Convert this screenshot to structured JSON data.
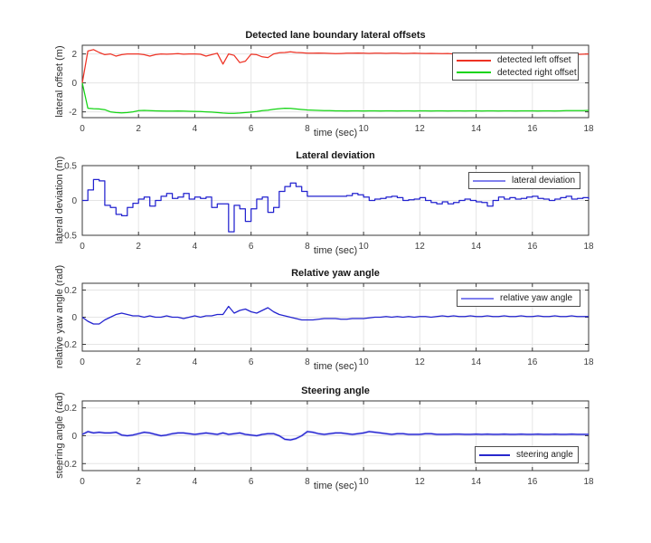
{
  "figure": {
    "background": "#ffffff",
    "grid_color": "#e5e5e5",
    "axis_color": "#3a3a3a",
    "tick_label_color": "#414141"
  },
  "chart_data": [
    {
      "type": "line",
      "title": "Detected lane boundary lateral offsets",
      "xlabel": "time (sec)",
      "ylabel": "lateral offset (m)",
      "xlim": [
        0,
        18
      ],
      "ylim": [
        -2.4,
        2.6
      ],
      "xticks": [
        0,
        2,
        4,
        6,
        8,
        10,
        12,
        14,
        16,
        18
      ],
      "yticks": [
        -2,
        0,
        2
      ],
      "grid": true,
      "legend_position": "upper-right",
      "x": [
        0,
        0.2,
        0.4,
        0.6,
        0.8,
        1,
        1.2,
        1.4,
        1.6,
        1.8,
        2,
        2.2,
        2.4,
        2.6,
        2.8,
        3,
        3.2,
        3.4,
        3.6,
        3.8,
        4,
        4.2,
        4.4,
        4.6,
        4.8,
        5,
        5.2,
        5.4,
        5.6,
        5.8,
        6,
        6.2,
        6.4,
        6.6,
        6.8,
        7,
        7.2,
        7.4,
        7.6,
        7.8,
        8,
        8.2,
        8.4,
        8.6,
        8.8,
        9,
        9.2,
        9.4,
        9.6,
        9.8,
        10,
        10.2,
        10.4,
        10.6,
        10.8,
        11,
        11.2,
        11.4,
        11.6,
        11.8,
        12,
        12.2,
        12.4,
        12.6,
        12.8,
        13,
        13.2,
        13.4,
        13.6,
        13.8,
        14,
        14.2,
        14.4,
        14.6,
        14.8,
        15,
        15.2,
        15.4,
        15.6,
        15.8,
        16,
        16.2,
        16.4,
        16.6,
        16.8,
        17,
        17.2,
        17.4,
        17.6,
        17.8,
        18
      ],
      "series": [
        {
          "name": "detected left offset",
          "color": "#ee3224",
          "legend_swatch": "#ee3224",
          "values": [
            0,
            2.2,
            2.3,
            2.1,
            1.95,
            2,
            1.85,
            1.95,
            2,
            2,
            2,
            1.95,
            1.85,
            1.95,
            2,
            1.98,
            2,
            2.02,
            1.98,
            2,
            2,
            1.98,
            1.85,
            1.95,
            2.05,
            1.3,
            2,
            1.9,
            1.4,
            1.5,
            1.98,
            1.95,
            1.8,
            1.75,
            2,
            2.08,
            2.1,
            2.15,
            2.1,
            2.08,
            2.05,
            2.05,
            2.06,
            2.05,
            2.04,
            2.02,
            2.03,
            2.05,
            2.05,
            2.06,
            2.05,
            2.04,
            2.05,
            2.05,
            2.04,
            2.05,
            2.05,
            2.03,
            2.04,
            2.05,
            2.04,
            2.03,
            2.04,
            2.03,
            2.02,
            2.03,
            2,
            1.98,
            2,
            1.99,
            1.98,
            2,
            1.97,
            1.98,
            1.97,
            1.96,
            2.05,
            1.97,
            1.96,
            1.98,
            1.97,
            1.96,
            1.97,
            1.98,
            1.96,
            1.97,
            1.98,
            2.05,
            1.97,
            1.98,
            2
          ]
        },
        {
          "name": "detected right offset",
          "color": "#11d411",
          "legend_swatch": "#11d411",
          "values": [
            0,
            -1.75,
            -1.78,
            -1.8,
            -1.85,
            -2,
            -2.05,
            -2.07,
            -2.05,
            -2,
            -1.92,
            -1.9,
            -1.92,
            -1.93,
            -1.94,
            -1.95,
            -1.95,
            -1.94,
            -1.95,
            -1.96,
            -1.97,
            -1.98,
            -2,
            -2.02,
            -2.05,
            -2.08,
            -2.1,
            -2.1,
            -2.08,
            -2.05,
            -2.02,
            -1.98,
            -1.92,
            -1.88,
            -1.82,
            -1.78,
            -1.75,
            -1.76,
            -1.8,
            -1.84,
            -1.87,
            -1.89,
            -1.9,
            -1.91,
            -1.92,
            -1.93,
            -1.93,
            -1.94,
            -1.93,
            -1.93,
            -1.94,
            -1.93,
            -1.93,
            -1.94,
            -1.93,
            -1.93,
            -1.94,
            -1.93,
            -1.93,
            -1.94,
            -1.93,
            -1.93,
            -1.94,
            -1.93,
            -1.93,
            -1.94,
            -1.93,
            -1.93,
            -1.94,
            -1.93,
            -1.93,
            -1.94,
            -1.93,
            -1.93,
            -1.94,
            -1.93,
            -1.93,
            -1.94,
            -1.93,
            -1.93,
            -1.93,
            -1.94,
            -1.93,
            -1.93,
            -1.94,
            -1.93,
            -1.92,
            -1.92,
            -1.91,
            -1.91,
            -1.9
          ]
        }
      ]
    },
    {
      "type": "line",
      "title": "Lateral deviation",
      "xlabel": "time (sec)",
      "ylabel": "lateral deviation (m)",
      "xlim": [
        0,
        18
      ],
      "ylim": [
        -0.5,
        0.5
      ],
      "xticks": [
        0,
        2,
        4,
        6,
        8,
        10,
        12,
        14,
        16,
        18
      ],
      "yticks": [
        -0.5,
        0,
        0.5
      ],
      "grid": true,
      "legend_position": "upper-right",
      "x": [
        0,
        0.2,
        0.4,
        0.6,
        0.8,
        1,
        1.2,
        1.4,
        1.6,
        1.8,
        2,
        2.2,
        2.4,
        2.6,
        2.8,
        3,
        3.2,
        3.4,
        3.6,
        3.8,
        4,
        4.2,
        4.4,
        4.6,
        4.8,
        5,
        5.2,
        5.4,
        5.6,
        5.8,
        6,
        6.2,
        6.4,
        6.6,
        6.8,
        7,
        7.2,
        7.4,
        7.6,
        7.8,
        8,
        8.2,
        8.4,
        8.6,
        8.8,
        9,
        9.2,
        9.4,
        9.6,
        9.8,
        10,
        10.2,
        10.4,
        10.6,
        10.8,
        11,
        11.2,
        11.4,
        11.6,
        11.8,
        12,
        12.2,
        12.4,
        12.6,
        12.8,
        13,
        13.2,
        13.4,
        13.6,
        13.8,
        14,
        14.2,
        14.4,
        14.6,
        14.8,
        15,
        15.2,
        15.4,
        15.6,
        15.8,
        16,
        16.2,
        16.4,
        16.6,
        16.8,
        17,
        17.2,
        17.4,
        17.6,
        17.8,
        18
      ],
      "series": [
        {
          "name": "lateral deviation",
          "color": "#2222cf",
          "legend_swatch": "#8080ee",
          "step": true,
          "values": [
            0,
            0.15,
            0.3,
            0.28,
            -0.07,
            -0.1,
            -0.2,
            -0.22,
            -0.1,
            -0.04,
            0.02,
            0.05,
            -0.08,
            0,
            0.06,
            0.1,
            0.03,
            0.05,
            0.1,
            0.02,
            0.05,
            0.03,
            0.05,
            -0.1,
            -0.05,
            -0.05,
            -0.45,
            -0.07,
            -0.12,
            -0.3,
            -0.12,
            0.02,
            0.05,
            -0.17,
            -0.1,
            0.13,
            0.2,
            0.25,
            0.2,
            0.13,
            0.06,
            0.06,
            0.06,
            0.06,
            0.06,
            0.06,
            0.06,
            0.07,
            0.1,
            0.08,
            0.05,
            0,
            0.02,
            0.03,
            0.05,
            0.06,
            0.04,
            0,
            0.01,
            0.02,
            0.04,
            0,
            -0.03,
            -0.05,
            -0.02,
            -0.05,
            -0.03,
            0,
            0.02,
            0,
            -0.02,
            -0.03,
            -0.08,
            0,
            0.05,
            0.02,
            0.04,
            0.02,
            0.03,
            0.05,
            0.06,
            0.03,
            0.02,
            0,
            0.02,
            0.04,
            0.06,
            0.02,
            0.03,
            0.04,
            0.02
          ]
        }
      ]
    },
    {
      "type": "line",
      "title": "Relative yaw angle",
      "xlabel": "time (sec)",
      "ylabel": "relative yaw angle (rad)",
      "xlim": [
        0,
        18
      ],
      "ylim": [
        -0.25,
        0.25
      ],
      "xticks": [
        0,
        2,
        4,
        6,
        8,
        10,
        12,
        14,
        16,
        18
      ],
      "yticks": [
        -0.2,
        0,
        0.2
      ],
      "grid": true,
      "legend_position": "upper-right",
      "x": [
        0,
        0.2,
        0.4,
        0.6,
        0.8,
        1,
        1.2,
        1.4,
        1.6,
        1.8,
        2,
        2.2,
        2.4,
        2.6,
        2.8,
        3,
        3.2,
        3.4,
        3.6,
        3.8,
        4,
        4.2,
        4.4,
        4.6,
        4.8,
        5,
        5.2,
        5.4,
        5.6,
        5.8,
        6,
        6.2,
        6.4,
        6.6,
        6.8,
        7,
        7.2,
        7.4,
        7.6,
        7.8,
        8,
        8.2,
        8.4,
        8.6,
        8.8,
        9,
        9.2,
        9.4,
        9.6,
        9.8,
        10,
        10.2,
        10.4,
        10.6,
        10.8,
        11,
        11.2,
        11.4,
        11.6,
        11.8,
        12,
        12.2,
        12.4,
        12.6,
        12.8,
        13,
        13.2,
        13.4,
        13.6,
        13.8,
        14,
        14.2,
        14.4,
        14.6,
        14.8,
        15,
        15.2,
        15.4,
        15.6,
        15.8,
        16,
        16.2,
        16.4,
        16.6,
        16.8,
        17,
        17.2,
        17.4,
        17.6,
        17.8,
        18
      ],
      "series": [
        {
          "name": "relative yaw angle",
          "color": "#2222cf",
          "legend_swatch": "#8080ee",
          "values": [
            0,
            -0.03,
            -0.05,
            -0.05,
            -0.02,
            0,
            0.02,
            0.03,
            0.02,
            0.01,
            0.01,
            0,
            0.01,
            0,
            0,
            0.01,
            0,
            0,
            -0.01,
            0,
            0.01,
            0,
            0.01,
            0.01,
            0.02,
            0.02,
            0.08,
            0.03,
            0.05,
            0.06,
            0.04,
            0.03,
            0.05,
            0.07,
            0.04,
            0.02,
            0.01,
            0,
            -0.01,
            -0.02,
            -0.02,
            -0.02,
            -0.015,
            -0.01,
            -0.01,
            -0.01,
            -0.015,
            -0.015,
            -0.01,
            -0.01,
            -0.01,
            -0.005,
            0,
            0,
            0.005,
            0,
            0.005,
            0,
            0.005,
            0,
            0.005,
            0.005,
            0,
            0.005,
            0.01,
            0.005,
            0.01,
            0.005,
            0.005,
            0.01,
            0.005,
            0.005,
            0.01,
            0.005,
            0.005,
            0.01,
            0.005,
            0.005,
            0.01,
            0.005,
            0.005,
            0.01,
            0.005,
            0.005,
            0.01,
            0.005,
            0.005,
            0.01,
            0.005,
            0.005,
            0.005
          ]
        }
      ]
    },
    {
      "type": "line",
      "title": "Steering angle",
      "xlabel": "time (sec)",
      "ylabel": "steering angle (rad)",
      "xlim": [
        0,
        18
      ],
      "ylim": [
        -0.25,
        0.25
      ],
      "xticks": [
        0,
        2,
        4,
        6,
        8,
        10,
        12,
        14,
        16,
        18
      ],
      "yticks": [
        -0.2,
        0,
        0.2
      ],
      "grid": true,
      "legend_position": "lower-right",
      "x": [
        0,
        0.2,
        0.4,
        0.6,
        0.8,
        1,
        1.2,
        1.4,
        1.6,
        1.8,
        2,
        2.2,
        2.4,
        2.6,
        2.8,
        3,
        3.2,
        3.4,
        3.6,
        3.8,
        4,
        4.2,
        4.4,
        4.6,
        4.8,
        5,
        5.2,
        5.4,
        5.6,
        5.8,
        6,
        6.2,
        6.4,
        6.6,
        6.8,
        7,
        7.2,
        7.4,
        7.6,
        7.8,
        8,
        8.2,
        8.4,
        8.6,
        8.8,
        9,
        9.2,
        9.4,
        9.6,
        9.8,
        10,
        10.2,
        10.4,
        10.6,
        10.8,
        11,
        11.2,
        11.4,
        11.6,
        11.8,
        12,
        12.2,
        12.4,
        12.6,
        12.8,
        13,
        13.2,
        13.4,
        13.6,
        13.8,
        14,
        14.2,
        14.4,
        14.6,
        14.8,
        15,
        15.2,
        15.4,
        15.6,
        15.8,
        16,
        16.2,
        16.4,
        16.6,
        16.8,
        17,
        17.2,
        17.4,
        17.6,
        17.8,
        18
      ],
      "series": [
        {
          "name": "steering angle",
          "color": "#2222cf",
          "legend_swatch": "#2828cd",
          "halo": "rgba(110,110,235,0.4)",
          "values": [
            0.01,
            0.03,
            0.02,
            0.025,
            0.02,
            0.02,
            0.025,
            0.005,
            0,
            0.005,
            0.015,
            0.025,
            0.02,
            0.01,
            0,
            0.005,
            0.015,
            0.02,
            0.02,
            0.015,
            0.01,
            0.015,
            0.02,
            0.015,
            0.01,
            0.02,
            0.01,
            0.015,
            0.02,
            0.01,
            0.005,
            0,
            0.01,
            0.015,
            0.015,
            0,
            -0.025,
            -0.03,
            -0.02,
            0,
            0.03,
            0.025,
            0.015,
            0.01,
            0.015,
            0.02,
            0.02,
            0.015,
            0.01,
            0.015,
            0.02,
            0.03,
            0.025,
            0.02,
            0.015,
            0.01,
            0.015,
            0.015,
            0.01,
            0.01,
            0.01,
            0.015,
            0.015,
            0.01,
            0.01,
            0.01,
            0.012,
            0.012,
            0.01,
            0.01,
            0.012,
            0.01,
            0.012,
            0.01,
            0.01,
            0.012,
            0.01,
            0.01,
            0.012,
            0.01,
            0.01,
            0.012,
            0.01,
            0.01,
            0.012,
            0.01,
            0.01,
            0.012,
            0.01,
            0.01,
            0.01
          ]
        }
      ]
    }
  ]
}
